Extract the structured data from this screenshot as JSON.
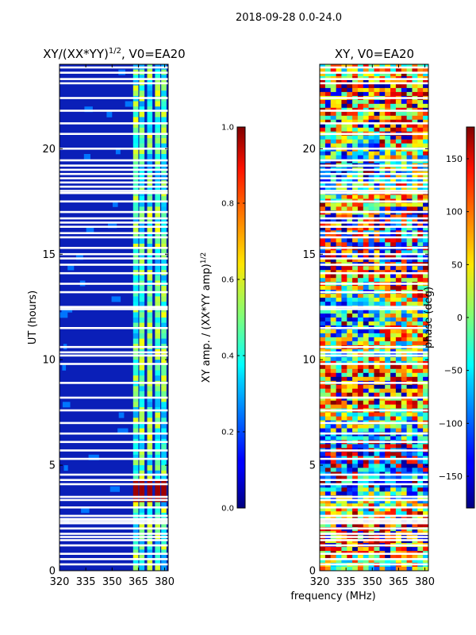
{
  "figure": {
    "suptitle": "2018-09-28 0.0-24.0",
    "xlabel": "frequency (MHz)"
  },
  "chart_data": [
    {
      "type": "heatmap",
      "title_base": "XY/(XX*YY)",
      "title_exp": "1/2",
      "title_tail": ", V0=EA20",
      "ylabel": "UT (hours)",
      "xlim": [
        320,
        382
      ],
      "ylim": [
        0,
        24
      ],
      "xticks": [
        320,
        335,
        350,
        365,
        380
      ],
      "yticks": [
        0,
        5,
        10,
        15,
        20
      ],
      "colormap": "jet",
      "clim": [
        0.0,
        1.0
      ],
      "colorbar_label": "XY amp. / (XX*YY amp)",
      "colorbar_label_exp": "1/2",
      "colorbar_ticks": [
        "0.0",
        "0.2",
        "0.4",
        "0.6",
        "0.8",
        "1.0"
      ],
      "background_level": 0.12,
      "channel_bands_mhz": [
        [
          362,
          365
        ],
        [
          365.5,
          368.5
        ],
        [
          370,
          373
        ],
        [
          374.5,
          377.5
        ],
        [
          378,
          381
        ]
      ],
      "band_level": 0.45,
      "hot_rows_hours": [
        3.6,
        3.8,
        4.0
      ],
      "hot_level": 0.97
    },
    {
      "type": "heatmap",
      "title": "XY, V0=EA20",
      "xlim": [
        320,
        382
      ],
      "ylim": [
        0,
        24
      ],
      "xticks": [
        320,
        335,
        350,
        365,
        380
      ],
      "yticks": [
        0,
        5,
        10,
        15,
        20
      ],
      "colormap": "jet",
      "clim": [
        -180,
        180
      ],
      "colorbar_label": "phase (deg)",
      "colorbar_ticks": [
        "150",
        "100",
        "50",
        "0",
        "−50",
        "−100",
        "−150"
      ],
      "colorbar_tick_values": [
        150,
        100,
        50,
        0,
        -50,
        -100,
        -150
      ]
    }
  ],
  "flagged_rows_hours": [
    0.3,
    0.55,
    0.8,
    1.2,
    1.45,
    1.6,
    1.75,
    2.0,
    2.25,
    2.35,
    2.45,
    2.6,
    3.0,
    3.35,
    3.5,
    4.1,
    4.3,
    4.55,
    5.3,
    5.7,
    6.1,
    6.5,
    7.0,
    7.6,
    8.2,
    8.9,
    9.8,
    10.2,
    10.35,
    10.6,
    11.5,
    12.4,
    12.5,
    13.2,
    13.6,
    14.1,
    14.5,
    14.8,
    15.0,
    15.3,
    15.8,
    16.0,
    16.3,
    16.5,
    16.7,
    17.0,
    17.5,
    17.9,
    18.0,
    18.2,
    18.4,
    18.6,
    18.8,
    19.0,
    19.2,
    19.45,
    20.0,
    20.7,
    21.2,
    21.8,
    22.4,
    23.1,
    23.3,
    23.6,
    23.85
  ]
}
